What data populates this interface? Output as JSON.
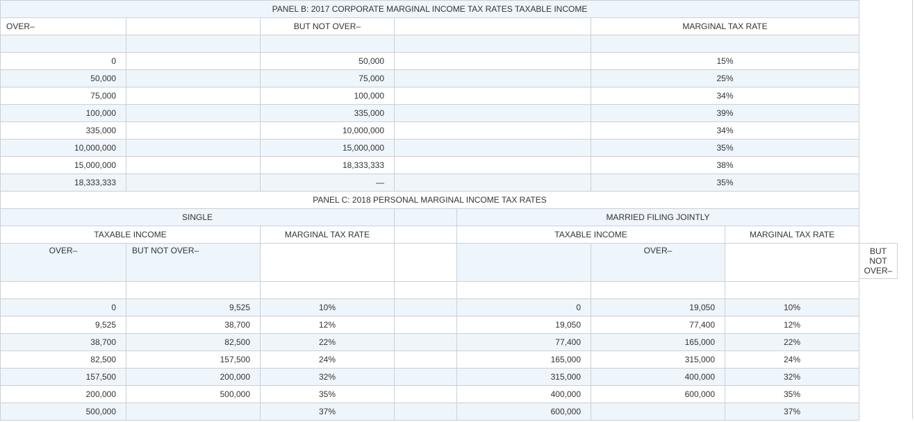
{
  "panel_b": {
    "title": "PANEL B: 2017 CORPORATE MARGINAL INCOME TAX RATES TAXABLE INCOME",
    "headers": {
      "over": "OVER–",
      "but_not_over": "BUT NOT OVER–",
      "rate": "MARGINAL TAX RATE"
    },
    "rows": [
      {
        "over": "0",
        "but_not_over": "50,000",
        "rate": "15%"
      },
      {
        "over": "50,000",
        "but_not_over": "75,000",
        "rate": "25%"
      },
      {
        "over": "75,000",
        "but_not_over": "100,000",
        "rate": "34%"
      },
      {
        "over": "100,000",
        "but_not_over": "335,000",
        "rate": "39%"
      },
      {
        "over": "335,000",
        "but_not_over": "10,000,000",
        "rate": "34%"
      },
      {
        "over": "10,000,000",
        "but_not_over": "15,000,000",
        "rate": "35%"
      },
      {
        "over": "15,000,000",
        "but_not_over": "18,333,333",
        "rate": "38%"
      },
      {
        "over": "18,333,333",
        "but_not_over": "—",
        "rate": "35%"
      }
    ]
  },
  "panel_c": {
    "title": "PANEL C: 2018 PERSONAL MARGINAL INCOME TAX RATES",
    "single_label": "SINGLE",
    "married_label": "MARRIED FILING JOINTLY",
    "taxable_income_label": "TAXABLE INCOME",
    "rate_label": "MARGINAL TAX RATE",
    "over_label": "OVER–",
    "but_not_over_label": "BUT NOT OVER–",
    "overflow_label": "BUT\nNOT\nOVER–",
    "rows": [
      {
        "s_over": "0",
        "s_but": "9,525",
        "s_rate": "10%",
        "m_over": "0",
        "m_but": "19,050",
        "m_rate": "10%"
      },
      {
        "s_over": "9,525",
        "s_but": "38,700",
        "s_rate": "12%",
        "m_over": "19,050",
        "m_but": "77,400",
        "m_rate": "12%"
      },
      {
        "s_over": "38,700",
        "s_but": "82,500",
        "s_rate": "22%",
        "m_over": "77,400",
        "m_but": "165,000",
        "m_rate": "22%"
      },
      {
        "s_over": "82,500",
        "s_but": "157,500",
        "s_rate": "24%",
        "m_over": "165,000",
        "m_but": "315,000",
        "m_rate": "24%"
      },
      {
        "s_over": "157,500",
        "s_but": "200,000",
        "s_rate": "32%",
        "m_over": "315,000",
        "m_but": "400,000",
        "m_rate": "32%"
      },
      {
        "s_over": "200,000",
        "s_but": "500,000",
        "s_rate": "35%",
        "m_over": "400,000",
        "m_but": "600,000",
        "m_rate": "35%"
      },
      {
        "s_over": "500,000",
        "s_but": "",
        "s_rate": "37%",
        "m_over": "600,000",
        "m_but": "",
        "m_rate": "37%"
      }
    ]
  }
}
